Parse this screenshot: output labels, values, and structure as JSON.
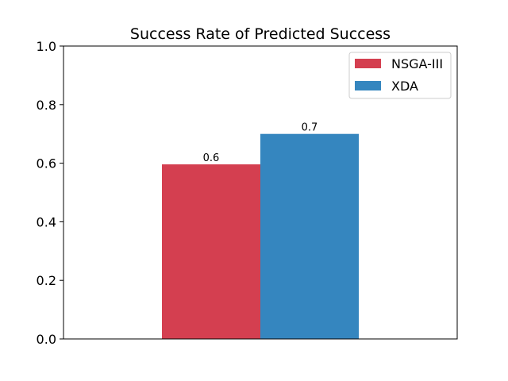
{
  "chart_data": {
    "type": "bar",
    "title": "Success Rate of Predicted Success",
    "xlabel": "",
    "ylabel": "",
    "ylim": [
      0,
      1.0
    ],
    "yticks": [
      "0.0",
      "0.2",
      "0.4",
      "0.6",
      "0.8",
      "1.0"
    ],
    "categories": [
      ""
    ],
    "series": [
      {
        "name": "NSGA-III",
        "values": [
          0.596
        ],
        "label": "0.6",
        "color": "#d43f50"
      },
      {
        "name": "XDA",
        "values": [
          0.7
        ],
        "label": "0.7",
        "color": "#3586bf"
      }
    ],
    "legend": {
      "position": "top-right"
    },
    "grid": false
  }
}
